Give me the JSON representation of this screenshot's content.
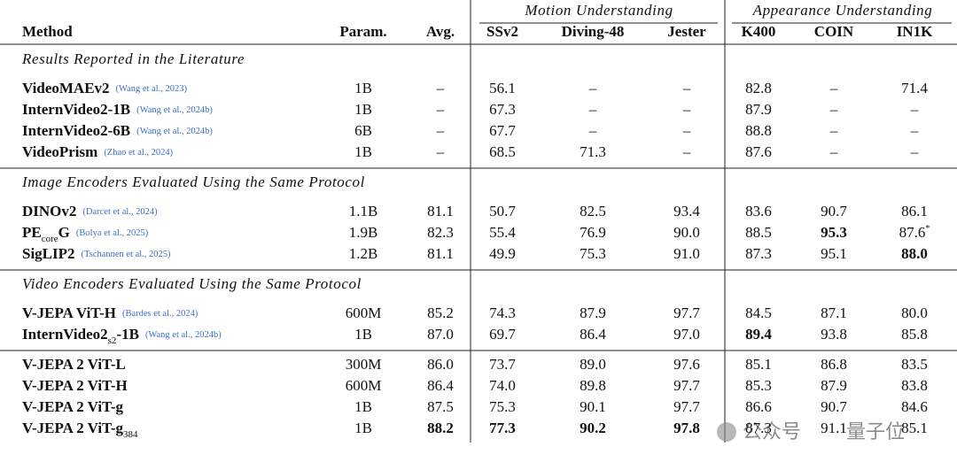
{
  "table": {
    "group_headers": [
      "Motion Understanding",
      "Appearance Understanding"
    ],
    "columns": [
      "Method",
      "Param.",
      "Avg.",
      "SSv2",
      "Diving-48",
      "Jester",
      "K400",
      "COIN",
      "IN1K"
    ],
    "sections": [
      {
        "title": "Results Reported in the Literature",
        "rows": [
          {
            "method": [
              {
                "text": "VideoMAEv2"
              }
            ],
            "cite": "(Wang et al., 2023)",
            "cells": [
              "1B",
              "–",
              "56.1",
              "–",
              "–",
              "82.8",
              "–",
              "71.4"
            ],
            "bold": []
          },
          {
            "method": [
              {
                "text": "InternVideo2-1B"
              }
            ],
            "cite": "(Wang et al., 2024b)",
            "cells": [
              "1B",
              "–",
              "67.3",
              "–",
              "–",
              "87.9",
              "–",
              "–"
            ],
            "bold": []
          },
          {
            "method": [
              {
                "text": "InternVideo2-6B"
              }
            ],
            "cite": "(Wang et al., 2024b)",
            "cells": [
              "6B",
              "–",
              "67.7",
              "–",
              "–",
              "88.8",
              "–",
              "–"
            ],
            "bold": []
          },
          {
            "method": [
              {
                "text": "VideoPrism"
              }
            ],
            "cite": "(Zhao et al., 2024)",
            "cells": [
              "1B",
              "–",
              "68.5",
              "71.3",
              "–",
              "87.6",
              "–",
              "–"
            ],
            "bold": []
          }
        ]
      },
      {
        "title": "Image Encoders Evaluated Using the Same Protocol",
        "rows": [
          {
            "method": [
              {
                "text": "DINOv2"
              }
            ],
            "cite": "(Darcet et al., 2024)",
            "cells": [
              "1.1B",
              "81.1",
              "50.7",
              "82.5",
              "93.4",
              "83.6",
              "90.7",
              "86.1"
            ],
            "bold": []
          },
          {
            "method": [
              {
                "text": "PE"
              },
              {
                "text": "core",
                "sub": true
              },
              {
                "text": "G"
              }
            ],
            "cite": "(Bolya et al., 2025)",
            "cells": [
              "1.9B",
              "82.3",
              "55.4",
              "76.9",
              "90.0",
              "88.5",
              "95.3",
              {
                "text": "87.6",
                "sup": "*"
              }
            ],
            "bold": [
              6
            ]
          },
          {
            "method": [
              {
                "text": "SigLIP2"
              }
            ],
            "cite": "(Tschannen et al., 2025)",
            "cells": [
              "1.2B",
              "81.1",
              "49.9",
              "75.3",
              "91.0",
              "87.3",
              "95.1",
              "88.0"
            ],
            "bold": [
              7
            ]
          }
        ]
      },
      {
        "title": "Video Encoders Evaluated Using the Same Protocol",
        "rows": [
          {
            "method": [
              {
                "text": "V-JEPA ViT-H"
              }
            ],
            "cite": "(Bardes et al., 2024)",
            "cells": [
              "600M",
              "85.2",
              "74.3",
              "87.9",
              "97.7",
              "84.5",
              "87.1",
              "80.0"
            ],
            "bold": []
          },
          {
            "method": [
              {
                "text": "InternVideo2"
              },
              {
                "text": "s2",
                "sub": true
              },
              {
                "text": "-1B"
              }
            ],
            "cite": "(Wang et al., 2024b)",
            "cells": [
              "1B",
              "87.0",
              "69.7",
              "86.4",
              "97.0",
              "89.4",
              "93.8",
              "85.8"
            ],
            "bold": [
              5
            ]
          }
        ]
      },
      {
        "rows": [
          {
            "method": [
              {
                "text": "V-JEPA 2 ViT-L"
              }
            ],
            "cells": [
              "300M",
              "86.0",
              "73.7",
              "89.0",
              "97.6",
              "85.1",
              "86.8",
              "83.5"
            ],
            "bold": []
          },
          {
            "method": [
              {
                "text": "V-JEPA 2 ViT-H"
              }
            ],
            "cells": [
              "600M",
              "86.4",
              "74.0",
              "89.8",
              "97.7",
              "85.3",
              "87.9",
              "83.8"
            ],
            "bold": []
          },
          {
            "method": [
              {
                "text": "V-JEPA 2 ViT-g"
              }
            ],
            "cells": [
              "1B",
              "87.5",
              "75.3",
              "90.1",
              "97.7",
              "86.6",
              "90.7",
              "84.6"
            ],
            "bold": []
          },
          {
            "method": [
              {
                "text": "V-JEPA 2 ViT-g"
              },
              {
                "text": "384",
                "sub": true
              }
            ],
            "cells": [
              "1B",
              "88.2",
              "77.3",
              "90.2",
              "97.8",
              "87.3",
              "91.1",
              "85.1"
            ],
            "bold": [
              1,
              2,
              3,
              4
            ]
          }
        ]
      }
    ]
  },
  "watermark": [
    "公众号",
    "量子位"
  ]
}
